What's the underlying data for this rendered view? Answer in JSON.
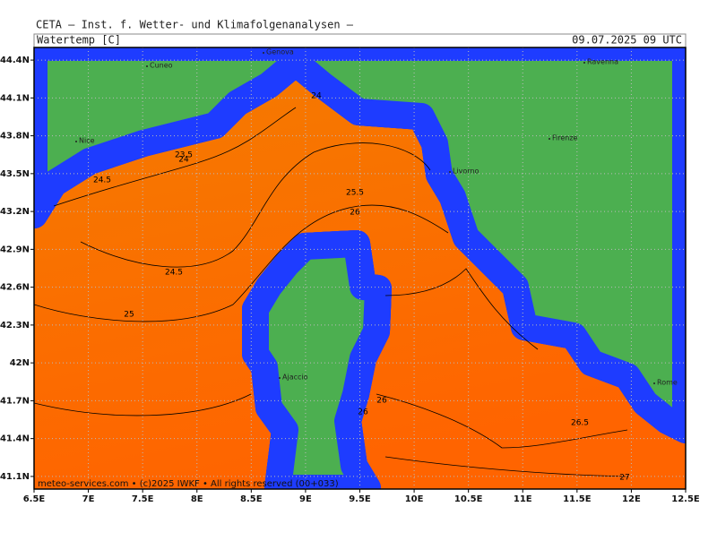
{
  "header": {
    "title": "CETA – Inst. f. Wetter- und Klimafolgenanalysen –",
    "variable": "Watertemp [C]",
    "datetime": "09.07.2025 09 UTC"
  },
  "axes": {
    "lon_ticks": [
      {
        "value": 6.5,
        "label": "6.5E"
      },
      {
        "value": 7,
        "label": "7E"
      },
      {
        "value": 7.5,
        "label": "7.5E"
      },
      {
        "value": 8,
        "label": "8E"
      },
      {
        "value": 8.5,
        "label": "8.5E"
      },
      {
        "value": 9,
        "label": "9E"
      },
      {
        "value": 9.5,
        "label": "9.5E"
      },
      {
        "value": 10,
        "label": "10E"
      },
      {
        "value": 10.5,
        "label": "10.5E"
      },
      {
        "value": 11,
        "label": "11E"
      },
      {
        "value": 11.5,
        "label": "11.5E"
      },
      {
        "value": 12,
        "label": "12E"
      },
      {
        "value": 12.5,
        "label": "12.5E"
      }
    ],
    "lat_ticks": [
      {
        "value": 44.4,
        "label": "44.4N"
      },
      {
        "value": 44.1,
        "label": "44.1N"
      },
      {
        "value": 43.8,
        "label": "43.8N"
      },
      {
        "value": 43.5,
        "label": "43.5N"
      },
      {
        "value": 43.2,
        "label": "43.2N"
      },
      {
        "value": 42.9,
        "label": "42.9N"
      },
      {
        "value": 42.6,
        "label": "42.6N"
      },
      {
        "value": 42.3,
        "label": "42.3N"
      },
      {
        "value": 42,
        "label": "42N"
      },
      {
        "value": 41.7,
        "label": "41.7N"
      },
      {
        "value": 41.4,
        "label": "41.4N"
      },
      {
        "value": 41.1,
        "label": "41.1N"
      }
    ]
  },
  "cities": [
    "Genova",
    "Cuneo",
    "Ravenna",
    "Nice",
    "Firenze",
    "Livorno",
    "Ajaccio",
    "Rome"
  ],
  "contour_labels": [
    24,
    23.5,
    24,
    24.5,
    25.5,
    26,
    24.5,
    25,
    26,
    26,
    26.5,
    27
  ],
  "footer": "meteo-services.com • (c)2025 IWKF • All rights reserved (00+033)"
}
